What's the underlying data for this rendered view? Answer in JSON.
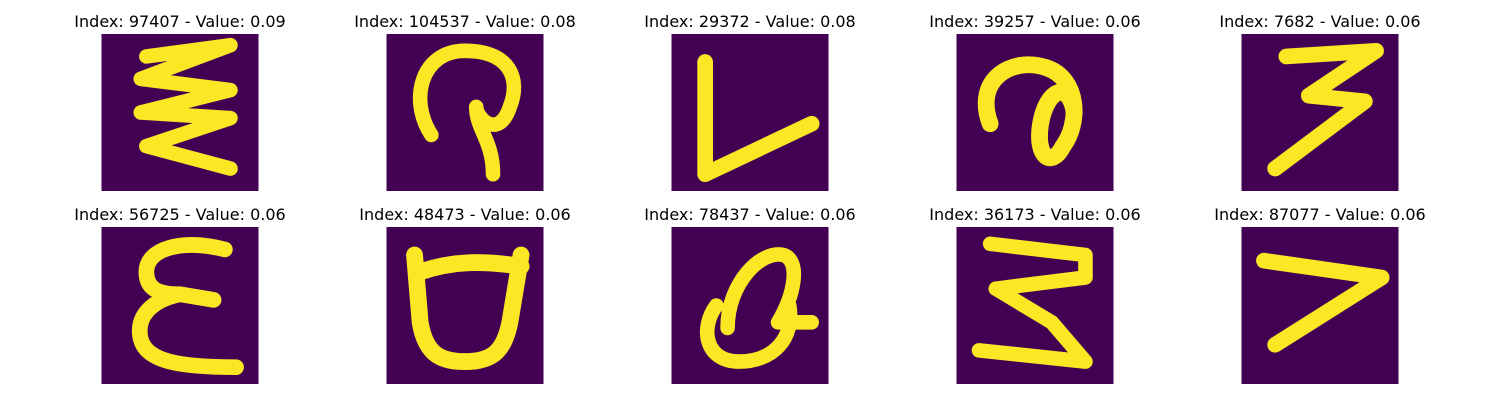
{
  "figure": {
    "background": "#ffffff",
    "colormap": "viridis",
    "image_background_color": "#440154",
    "stroke_color": "#fde725",
    "axes_visible": false
  },
  "chart_data": {
    "type": "image_grid",
    "rows": 2,
    "cols": 5,
    "panels": [
      {
        "title": "Index: 97407 - Value: 0.09",
        "index": 97407,
        "value": 0.09,
        "glyph": "w-zigzag"
      },
      {
        "title": "Index: 104537 - Value: 0.08",
        "index": 104537,
        "value": 0.08,
        "glyph": "loop-hook"
      },
      {
        "title": "Index: 29372 - Value: 0.08",
        "index": 29372,
        "value": 0.08,
        "glyph": "l-shape"
      },
      {
        "title": "Index: 39257 - Value: 0.06",
        "index": 39257,
        "value": 0.06,
        "glyph": "spiral-a"
      },
      {
        "title": "Index: 7682 - Value: 0.06",
        "index": 7682,
        "value": 0.06,
        "glyph": "three-z"
      },
      {
        "title": "Index: 56725 - Value: 0.06",
        "index": 56725,
        "value": 0.06,
        "glyph": "epsilon"
      },
      {
        "title": "Index: 48473 - Value: 0.06",
        "index": 48473,
        "value": 0.06,
        "glyph": "cup"
      },
      {
        "title": "Index: 78437 - Value: 0.06",
        "index": 78437,
        "value": 0.06,
        "glyph": "curl"
      },
      {
        "title": "Index: 36173 - Value: 0.06",
        "index": 36173,
        "value": 0.06,
        "glyph": "three-sharp"
      },
      {
        "title": "Index: 87077 - Value: 0.06",
        "index": 87077,
        "value": 0.06,
        "glyph": "seven"
      }
    ]
  }
}
